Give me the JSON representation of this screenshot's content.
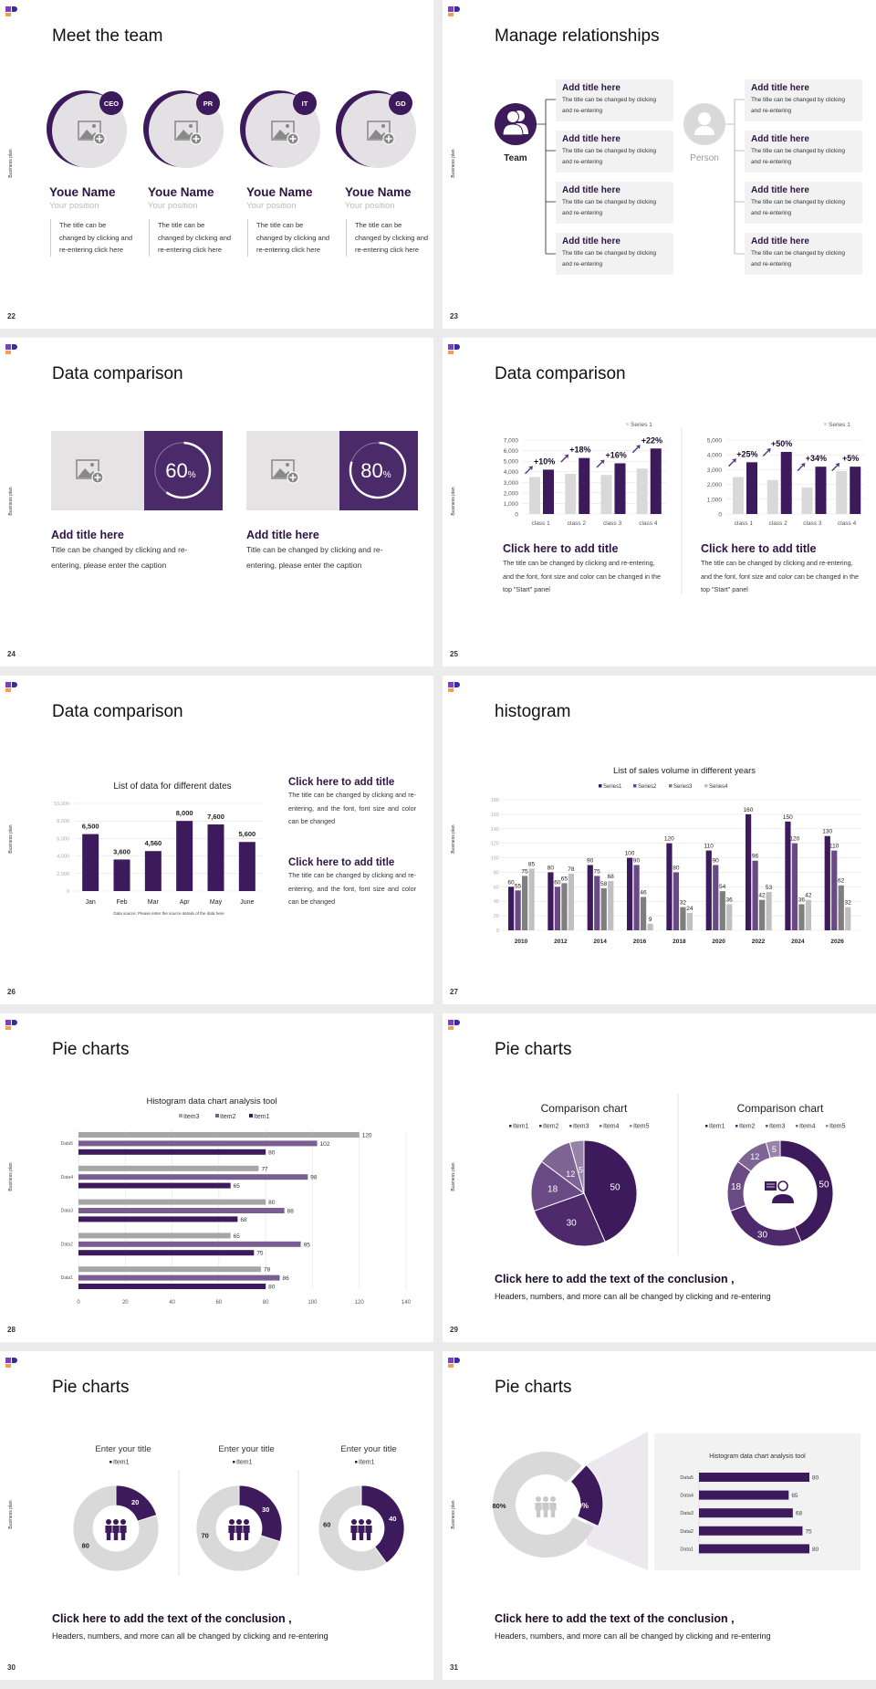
{
  "brand": {
    "logo": "brand-logo-mark",
    "side_label": "Business plan"
  },
  "colors": {
    "primary": "#3d1a5b",
    "secondary": "#6a4a84",
    "gray": "#a6a6a6",
    "light_gray": "#d9d9d9",
    "box_bg": "#f2f2f2",
    "background": "#ececec"
  },
  "slides": {
    "s22": {
      "page": "22",
      "title": "Meet the team",
      "members": [
        {
          "badge": "CEO",
          "name": "Youe Name",
          "position": "Your position",
          "desc": "The title can be changed by clicking and re-entering click here",
          "icon": "image-placeholder-icon"
        },
        {
          "badge": "PR",
          "name": "Youe Name",
          "position": "Your position",
          "desc": "The title can be changed by clicking and re-entering click here",
          "icon": "image-placeholder-icon"
        },
        {
          "badge": "IT",
          "name": "Youe Name",
          "position": "Your position",
          "desc": "The title can be changed by clicking and re-entering click here",
          "icon": "image-placeholder-icon"
        },
        {
          "badge": "GD",
          "name": "Youe Name",
          "position": "Your position",
          "desc": "The title can be changed by clicking and re-entering click here",
          "icon": "image-placeholder-icon"
        }
      ]
    },
    "s23": {
      "page": "23",
      "title": "Manage relationships",
      "team_label": "Team",
      "person_label": "Person",
      "team_boxes": [
        {
          "title": "Add title here",
          "text": "The title can be changed by clicking and re-entering"
        },
        {
          "title": "Add title here",
          "text": "The title can be changed by clicking and re-entering"
        },
        {
          "title": "Add title here",
          "text": "The title can be changed by clicking and re-entering"
        },
        {
          "title": "Add title here",
          "text": "The title can be changed by clicking and re-entering"
        }
      ],
      "person_boxes": [
        {
          "title": "Add title here",
          "text": "The title can be changed by clicking and re-entering"
        },
        {
          "title": "Add title here",
          "text": "The title can be changed by clicking and re-entering"
        },
        {
          "title": "Add title here",
          "text": "The title can be changed by clicking and re-entering"
        },
        {
          "title": "Add title here",
          "text": "The title can be changed by clicking and re-entering"
        }
      ]
    },
    "s24": {
      "page": "24",
      "title": "Data comparison",
      "cards": [
        {
          "percent": 60,
          "percent_text": "60",
          "unit": "%",
          "title": "Add title here",
          "caption": "Title can be changed by clicking and re-entering, please enter the caption"
        },
        {
          "percent": 80,
          "percent_text": "80",
          "unit": "%",
          "title": "Add title here",
          "caption": "Title can be changed by clicking and re-entering, please enter the caption"
        }
      ]
    },
    "s25": {
      "page": "25",
      "title": "Data comparison",
      "blocks": [
        {
          "title": "Click here to add title",
          "text": "The title can be changed by clicking and re-entering, and the font, font size and color can be changed in the top \"Start\" panel"
        },
        {
          "title": "Click here to add title",
          "text": "The title can be changed by clicking and re-entering, and the font, font size and color can be changed in the top \"Start\" panel"
        }
      ]
    },
    "s26": {
      "page": "26",
      "title": "Data comparison",
      "blocks": [
        {
          "title": "Click here to add title",
          "text": "The title can be changed by clicking and re-entering, and the font, font size and color can be changed"
        },
        {
          "title": "Click here to add title",
          "text": "The title can be changed by clicking and re-entering, and the font, font size and color can be changed"
        }
      ]
    },
    "s27": {
      "page": "27",
      "title": "histogram"
    },
    "s28": {
      "page": "28",
      "title": "Pie charts"
    },
    "s29": {
      "page": "29",
      "title": "Pie charts",
      "conclusion": "Click here to add the text of the conclusion ,",
      "sub": "Headers, numbers, and more can all be changed by clicking and re-entering"
    },
    "s30": {
      "page": "30",
      "title": "Pie charts",
      "conclusion": "Click here to add the text of the conclusion ,",
      "sub": "Headers, numbers, and more can all be changed by clicking and re-entering"
    },
    "s31": {
      "page": "31",
      "title": "Pie charts",
      "conclusion": "Click here to add the text of the conclusion ,",
      "sub": "Headers, numbers, and more can all be changed by clicking and re-entering"
    }
  },
  "chart_data": [
    {
      "type": "bar",
      "categories": [
        "class 1",
        "class 2",
        "class 3",
        "class 4"
      ],
      "series": [
        {
          "name": "Series 1",
          "values": [
            3500,
            3800,
            3700,
            4300
          ]
        },
        {
          "values": [
            4200,
            5300,
            4800,
            6200
          ]
        }
      ],
      "annotations": [
        "+10%",
        "+18%",
        "+16%",
        "+22%"
      ],
      "yticks": [
        "0",
        "1,000",
        "2,000",
        "3,000",
        "4,000",
        "5,000",
        "6,000",
        "7,000"
      ],
      "ylim": [
        0,
        7000
      ],
      "grid": true,
      "legend": "top-right"
    },
    {
      "type": "bar",
      "categories": [
        "class 1",
        "class 2",
        "class 3",
        "class 4"
      ],
      "series": [
        {
          "name": "Series 1",
          "values": [
            2500,
            2300,
            1800,
            2900
          ]
        },
        {
          "values": [
            3500,
            4200,
            3200,
            3200
          ]
        }
      ],
      "annotations": [
        "+25%",
        "+50%",
        "+34%",
        "+5%"
      ],
      "yticks": [
        "0",
        "1,000",
        "2,000",
        "3,000",
        "4,000",
        "5,000"
      ],
      "ylim": [
        0,
        5000
      ],
      "grid": true,
      "legend": "top-right"
    },
    {
      "type": "bar",
      "title": "List of data for different dates",
      "categories": [
        "Jan",
        "Feb",
        "Mar",
        "Apr",
        "May",
        "June"
      ],
      "values": [
        6500,
        3600,
        4560,
        8000,
        7600,
        5600
      ],
      "data_labels": [
        "6,500",
        "3,600",
        "4,560",
        "8,000",
        "7,600",
        "5,600"
      ],
      "yticks": [
        "0",
        "2,000",
        "4,000",
        "6,000",
        "8,000",
        "10,000"
      ],
      "ylim": [
        0,
        10000
      ],
      "grid": true,
      "source": "Data source: Please enter the source details of the data here"
    },
    {
      "type": "bar",
      "title": "List of sales volume in different years",
      "categories": [
        "2010",
        "2012",
        "2014",
        "2016",
        "2018",
        "2020",
        "2022",
        "2024",
        "2026"
      ],
      "series": [
        {
          "name": "Series1",
          "values": [
            60,
            80,
            90,
            100,
            120,
            110,
            160,
            150,
            130
          ]
        },
        {
          "name": "Series2",
          "values": [
            55,
            60,
            75,
            90,
            80,
            90,
            96,
            120,
            110
          ]
        },
        {
          "name": "Series3",
          "values": [
            75,
            65,
            58,
            46,
            32,
            54,
            42,
            36,
            62
          ]
        },
        {
          "name": "Series4",
          "values": [
            85,
            78,
            68,
            9,
            24,
            36,
            53,
            42,
            32
          ]
        }
      ],
      "yticks": [
        "0",
        "20",
        "40",
        "60",
        "80",
        "100",
        "120",
        "140",
        "160",
        "180"
      ],
      "ylim": [
        0,
        180
      ],
      "grid": true,
      "legend": "top"
    },
    {
      "type": "bar",
      "orientation": "horizontal",
      "title": "Histogram data chart analysis tool",
      "categories": [
        "Data5",
        "Data4",
        "Data3",
        "Data2",
        "Data1"
      ],
      "series": [
        {
          "name": "Item3",
          "values": [
            120,
            77,
            80,
            65,
            78
          ]
        },
        {
          "name": "Item2",
          "values": [
            102,
            98,
            88,
            95,
            86
          ]
        },
        {
          "name": "Item1",
          "values": [
            80,
            65,
            68,
            75,
            80
          ]
        }
      ],
      "xticks": [
        "0",
        "20",
        "40",
        "60",
        "80",
        "100",
        "120",
        "140"
      ],
      "xlim": [
        0,
        140
      ],
      "grid": true,
      "legend": "top"
    },
    {
      "type": "pie",
      "title": "Comparison chart",
      "labels": [
        "Item1",
        "Item2",
        "Item3",
        "Item4",
        "Item5"
      ],
      "values": [
        50,
        30,
        18,
        12,
        5
      ],
      "legend": "top"
    },
    {
      "type": "pie",
      "variant": "donut",
      "title": "Comparison chart",
      "labels": [
        "Item1",
        "Item2",
        "Item3",
        "Item4",
        "Item5"
      ],
      "values": [
        50,
        30,
        18,
        12,
        5
      ],
      "legend": "top",
      "center_icon": "customer-service-icon"
    },
    {
      "type": "pie",
      "variant": "donut",
      "title": "Enter your title",
      "legend_label": "Item1",
      "values": [
        20,
        80
      ],
      "center_icon": "team-icon"
    },
    {
      "type": "pie",
      "variant": "donut",
      "title": "Enter your title",
      "legend_label": "Item1",
      "values": [
        30,
        70
      ],
      "center_icon": "team-icon"
    },
    {
      "type": "pie",
      "variant": "donut",
      "title": "Enter your title",
      "legend_label": "Item1",
      "values": [
        40,
        60
      ],
      "center_icon": "team-icon"
    },
    {
      "type": "pie",
      "variant": "donut",
      "values": [
        20,
        80
      ],
      "data_labels": [
        "20%",
        "80%"
      ],
      "center_icon": "meeting-icon"
    },
    {
      "type": "bar",
      "orientation": "horizontal",
      "title": "Histogram data chart analysis tool",
      "categories": [
        "Data5",
        "Data4",
        "Data3",
        "Data2",
        "Data1"
      ],
      "values": [
        80,
        65,
        68,
        75,
        80
      ],
      "xlim": [
        0,
        80
      ]
    }
  ]
}
